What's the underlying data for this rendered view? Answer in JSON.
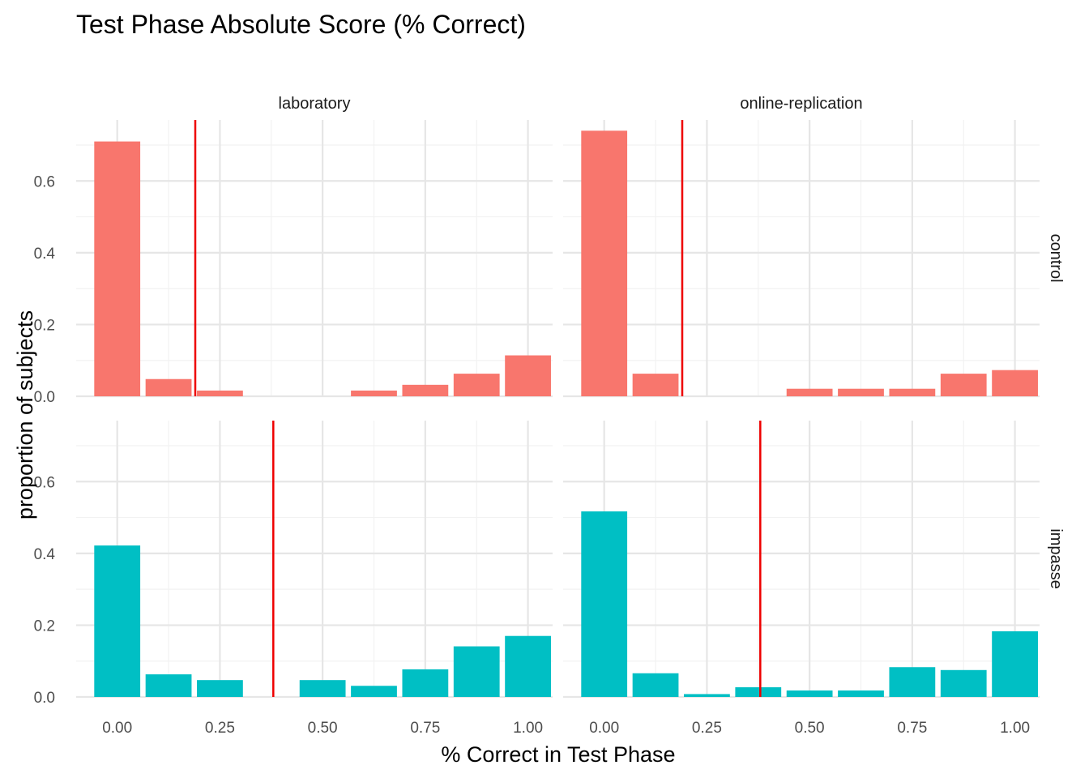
{
  "chart_data": {
    "type": "bar",
    "title": "Test Phase Absolute Score (% Correct)",
    "xlabel": "% Correct in Test Phase",
    "ylabel": "proportion of subjects",
    "col_facets": [
      "laboratory",
      "online-replication"
    ],
    "row_facets": [
      "control",
      "impasse"
    ],
    "x": [
      0.0,
      0.125,
      0.25,
      0.375,
      0.5,
      0.625,
      0.75,
      0.875,
      1.0
    ],
    "x_ticks": [
      "0.00",
      "0.25",
      "0.50",
      "0.75",
      "1.00"
    ],
    "y_ticks": [
      "0.0",
      "0.2",
      "0.4",
      "0.6"
    ],
    "xlim": [
      -0.1,
      1.06
    ],
    "ylim": [
      0,
      0.77
    ],
    "grid": true,
    "colors": {
      "control": "#F8766D",
      "impasse": "#00BFC4",
      "mean_line": "#EE0000"
    },
    "panels": [
      {
        "col": "laboratory",
        "row": "control",
        "group": "control",
        "values": [
          0.71,
          0.048,
          0.016,
          0,
          0,
          0.016,
          0.032,
          0.063,
          0.114
        ],
        "mean": 0.19
      },
      {
        "col": "online-replication",
        "row": "control",
        "group": "control",
        "values": [
          0.74,
          0.063,
          0,
          0,
          0.021,
          0.021,
          0.021,
          0.063,
          0.073
        ],
        "mean": 0.19
      },
      {
        "col": "laboratory",
        "row": "impasse",
        "group": "impasse",
        "values": [
          0.422,
          0.063,
          0.047,
          0,
          0.047,
          0.031,
          0.077,
          0.141,
          0.17
        ],
        "mean": 0.38
      },
      {
        "col": "online-replication",
        "row": "impasse",
        "group": "impasse",
        "values": [
          0.517,
          0.066,
          0.008,
          0.027,
          0.018,
          0.018,
          0.083,
          0.075,
          0.183
        ],
        "mean": 0.38
      }
    ]
  }
}
